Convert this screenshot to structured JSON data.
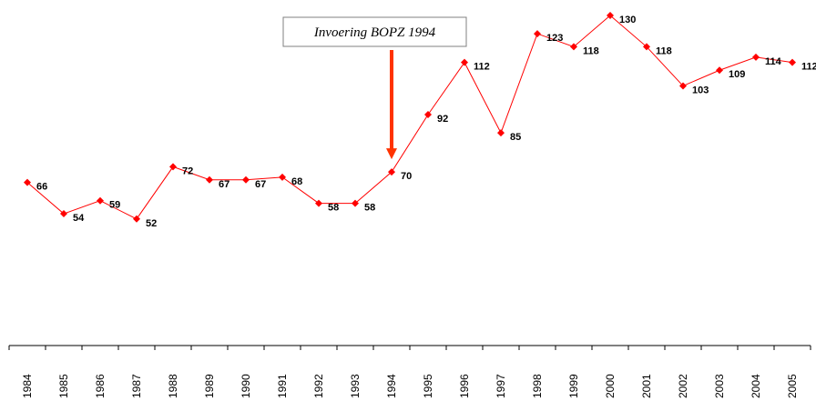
{
  "chart_data": {
    "type": "line",
    "categories": [
      "1984",
      "1985",
      "1986",
      "1987",
      "1988",
      "1989",
      "1990",
      "1991",
      "1992",
      "1993",
      "1994",
      "1995",
      "1996",
      "1997",
      "1998",
      "1999",
      "2000",
      "2001",
      "2002",
      "2003",
      "2004",
      "2005"
    ],
    "series": [
      {
        "name": null,
        "color": "#ff0000",
        "values": [
          66,
          54,
          59,
          52,
          72,
          67,
          67,
          68,
          58,
          58,
          70,
          92,
          112,
          85,
          123,
          118,
          130,
          118,
          103,
          109,
          114,
          112
        ]
      }
    ],
    "ylim": [
      0,
      140
    ],
    "annotation": "Invoering BOPZ 1994",
    "annotation_category": "1994",
    "annotation_color": "#ff3300"
  }
}
